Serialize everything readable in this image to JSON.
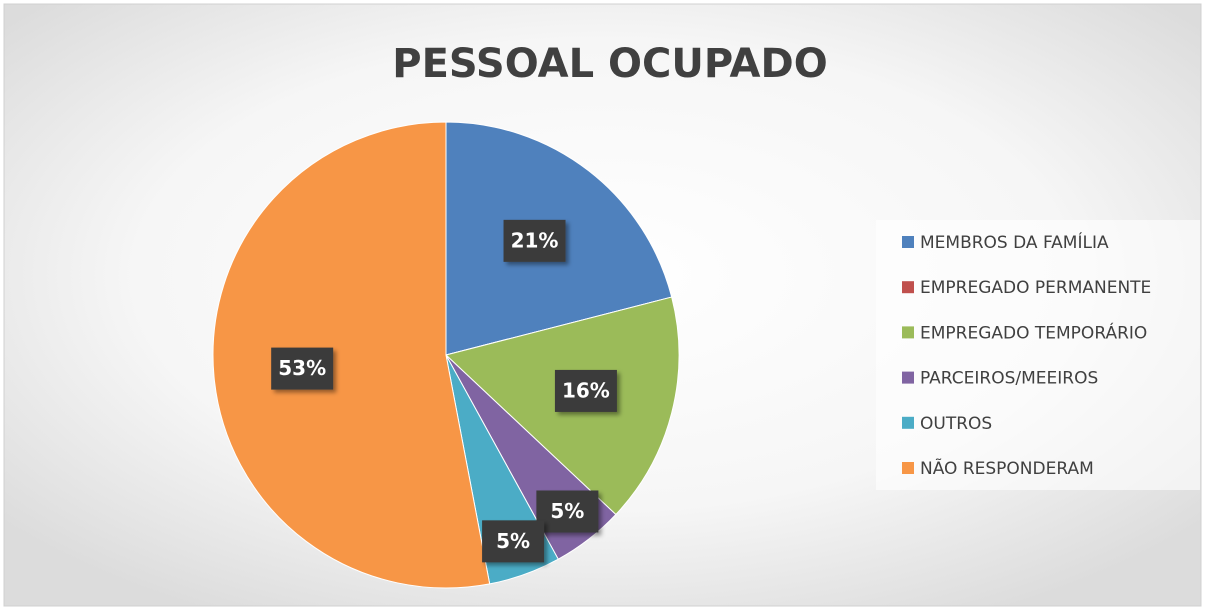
{
  "chart_data": {
    "type": "pie",
    "title": "PESSOAL OCUPADO",
    "categories": [
      "MEMBROS DA FAMÍLIA",
      "EMPREGADO PERMANENTE",
      "EMPREGADO TEMPORÁRIO",
      "PARCEIROS/MEEIROS",
      "OUTROS",
      "NÃO RESPONDERAM"
    ],
    "values": [
      21,
      0,
      16,
      5,
      5,
      53
    ],
    "value_labels": [
      "21%",
      null,
      "16%",
      "5%",
      "5%",
      "53%"
    ],
    "colors": [
      "#4f81bd",
      "#c0504d",
      "#9bbb59",
      "#8064a2",
      "#4bacc6",
      "#f79646"
    ],
    "legend": "right"
  }
}
